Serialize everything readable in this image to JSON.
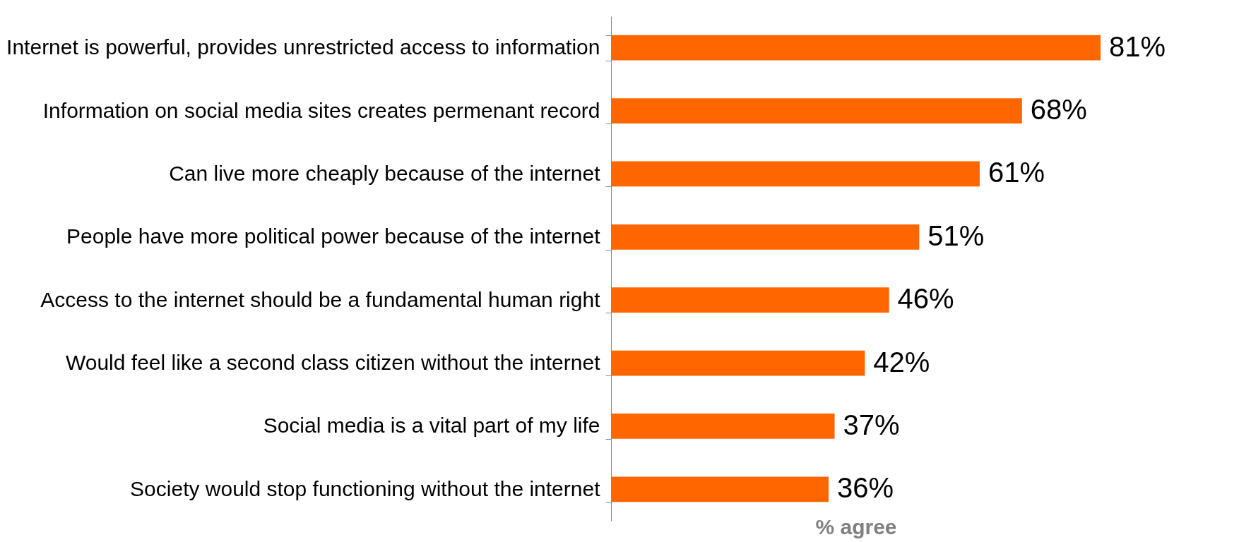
{
  "chart_data": {
    "type": "bar",
    "orientation": "horizontal",
    "xlabel": "% agree",
    "categories": [
      "Internet is powerful, provides unrestricted access to information",
      "Information on social media sites creates permenant record",
      "Can live more cheaply because of the internet",
      "People have more political power because of the internet",
      "Access to the internet should be a fundamental human right",
      "Would feel like a second class citizen without the internet",
      "Social media is a vital part of my life ",
      "Society would stop functioning without the internet"
    ],
    "values": [
      81,
      68,
      61,
      51,
      46,
      42,
      37,
      36
    ],
    "value_labels": [
      "81%",
      "68%",
      "61%",
      "51%",
      "46%",
      "42%",
      "37%",
      "36%"
    ],
    "color": "#ff6600",
    "tick_labels": "y",
    "grid": false
  }
}
